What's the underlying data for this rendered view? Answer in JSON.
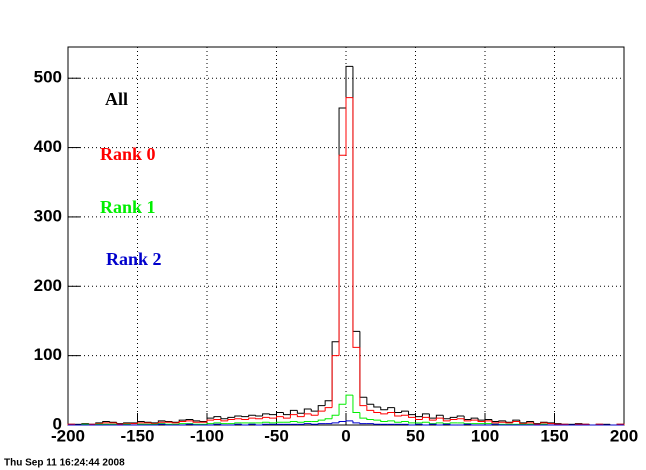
{
  "chart_data": {
    "type": "histogram",
    "bins": [
      -200,
      -195,
      -190,
      -185,
      -180,
      -175,
      -170,
      -165,
      -160,
      -155,
      -150,
      -145,
      -140,
      -135,
      -130,
      -125,
      -120,
      -115,
      -110,
      -105,
      -100,
      -95,
      -90,
      -85,
      -80,
      -75,
      -70,
      -65,
      -60,
      -55,
      -50,
      -45,
      -40,
      -35,
      -30,
      -25,
      -20,
      -15,
      -10,
      -5,
      0,
      5,
      10,
      15,
      20,
      25,
      30,
      35,
      40,
      45,
      50,
      55,
      60,
      65,
      70,
      75,
      80,
      85,
      90,
      95,
      100,
      105,
      110,
      115,
      120,
      125,
      130,
      135,
      140,
      145,
      150,
      155,
      160,
      165,
      170,
      175,
      180,
      185,
      190,
      195,
      200
    ],
    "series": [
      {
        "name": "All",
        "color": "#000000",
        "values": [
          1,
          1,
          2,
          1,
          3,
          5,
          4,
          2,
          3,
          3,
          5,
          4,
          3,
          6,
          5,
          4,
          7,
          8,
          6,
          5,
          10,
          12,
          9,
          11,
          13,
          12,
          14,
          13,
          16,
          15,
          18,
          15,
          21,
          17,
          23,
          20,
          28,
          35,
          120,
          457,
          517,
          135,
          40,
          30,
          26,
          22,
          25,
          18,
          20,
          15,
          12,
          16,
          10,
          14,
          9,
          11,
          13,
          8,
          10,
          7,
          8,
          5,
          6,
          4,
          7,
          3,
          5,
          2,
          4,
          3,
          2,
          1,
          1,
          2,
          1,
          0,
          1,
          1,
          0,
          1
        ]
      },
      {
        "name": "Rank 0",
        "color": "#ff0000",
        "values": [
          1,
          0,
          1,
          1,
          2,
          3,
          3,
          1,
          2,
          2,
          3,
          3,
          2,
          4,
          4,
          3,
          5,
          6,
          4,
          4,
          7,
          8,
          6,
          8,
          9,
          8,
          10,
          9,
          11,
          10,
          12,
          10,
          15,
          12,
          16,
          14,
          20,
          25,
          100,
          389,
          472,
          112,
          28,
          21,
          18,
          16,
          18,
          13,
          14,
          11,
          8,
          11,
          7,
          10,
          6,
          8,
          9,
          6,
          7,
          5,
          6,
          3,
          4,
          3,
          5,
          2,
          3,
          1,
          3,
          2,
          1,
          1,
          0,
          1,
          1,
          0,
          1,
          0,
          0,
          1
        ]
      },
      {
        "name": "Rank 1",
        "color": "#00ee00",
        "values": [
          0,
          0,
          1,
          0,
          1,
          1,
          1,
          0,
          1,
          0,
          1,
          1,
          1,
          2,
          1,
          1,
          2,
          2,
          1,
          1,
          2,
          3,
          2,
          2,
          3,
          3,
          3,
          3,
          4,
          3,
          4,
          4,
          5,
          4,
          5,
          5,
          7,
          9,
          14,
          30,
          43,
          18,
          10,
          8,
          7,
          5,
          6,
          4,
          5,
          3,
          3,
          4,
          2,
          3,
          2,
          3,
          3,
          2,
          2,
          2,
          2,
          1,
          1,
          1,
          1,
          1,
          1,
          0,
          1,
          0,
          0,
          0,
          0,
          0,
          0,
          0,
          0,
          0,
          0,
          0
        ]
      },
      {
        "name": "Rank 2",
        "color": "#0000cc",
        "values": [
          0,
          0,
          0,
          0,
          0,
          0,
          0,
          0,
          0,
          0,
          0,
          0,
          0,
          1,
          0,
          0,
          0,
          1,
          0,
          0,
          0,
          1,
          0,
          0,
          1,
          0,
          1,
          0,
          1,
          1,
          1,
          1,
          1,
          1,
          2,
          1,
          2,
          2,
          3,
          5,
          6,
          3,
          2,
          2,
          1,
          1,
          1,
          1,
          1,
          0,
          1,
          0,
          1,
          0,
          1,
          0,
          0,
          1,
          0,
          0,
          0,
          1,
          0,
          0,
          0,
          0,
          0,
          0,
          0,
          0,
          0,
          0,
          0,
          0,
          0,
          0,
          0,
          0,
          0,
          0
        ]
      }
    ],
    "xlim": [
      -200,
      200
    ],
    "xticks": [
      -200,
      -150,
      -100,
      -50,
      0,
      50,
      100,
      150,
      200
    ],
    "ylim": [
      0,
      545
    ],
    "yticks": [
      0,
      100,
      200,
      300,
      400,
      500
    ],
    "grid": true,
    "timestamp": "Thu Sep 11 16:24:44 2008"
  }
}
